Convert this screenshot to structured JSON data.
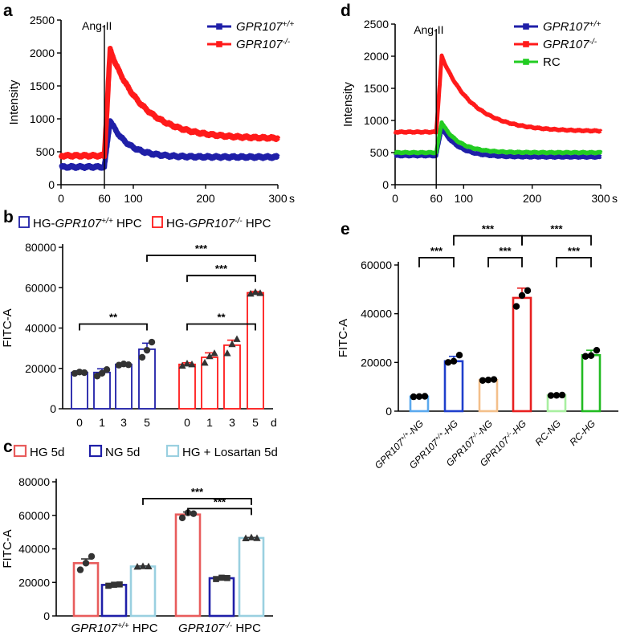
{
  "chart_data": [
    {
      "panel": "a",
      "type": "line",
      "ylabel": "Intensity",
      "x_unit": "s",
      "x_ticks": [
        0,
        60,
        100,
        200,
        300
      ],
      "y_ticks": [
        0,
        500,
        1000,
        1500,
        2000,
        2500
      ],
      "xlim": [
        0,
        300
      ],
      "ylim": [
        0,
        2500
      ],
      "annotation": {
        "text": "Ang-II",
        "x": 60
      },
      "series": [
        {
          "name": "GPR107",
          "sup": "+/+",
          "color": "#1f1fa8",
          "baseline": 270,
          "peak": 980,
          "plateau": 420
        },
        {
          "name": "GPR107",
          "sup": "-/-",
          "color": "#ff1a1a",
          "baseline": 440,
          "peak": 2050,
          "plateau": 700
        }
      ]
    },
    {
      "panel": "d",
      "type": "line",
      "ylabel": "Intensity",
      "x_unit": "s",
      "x_ticks": [
        0,
        60,
        100,
        200,
        300
      ],
      "y_ticks": [
        0,
        500,
        1000,
        1500,
        2000,
        2500
      ],
      "xlim": [
        0,
        300
      ],
      "ylim": [
        0,
        2500
      ],
      "annotation": {
        "text": "Ang-II",
        "x": 60
      },
      "series": [
        {
          "name": "GPR107",
          "sup": "+/+",
          "color": "#1f1fa8",
          "baseline": 450,
          "peak": 880,
          "plateau": 430
        },
        {
          "name": "GPR107",
          "sup": "-/-",
          "color": "#ff1a1a",
          "baseline": 820,
          "peak": 2000,
          "plateau": 830
        },
        {
          "name": "RC",
          "sup": "",
          "color": "#22cc22",
          "baseline": 500,
          "peak": 970,
          "plateau": 500
        }
      ]
    },
    {
      "panel": "b",
      "type": "bar",
      "ylabel": "FITC-A",
      "y_ticks": [
        0,
        20000,
        40000,
        60000,
        80000
      ],
      "ylim": [
        0,
        80000
      ],
      "x_unit": "d",
      "legend": [
        {
          "prefix": "HG-",
          "gene": "GPR107",
          "sup": "+/+",
          "suffix": " HPC",
          "color": "#1f1fa8"
        },
        {
          "prefix": "HG-",
          "gene": "GPR107",
          "sup": "-/-",
          "suffix": " HPC",
          "color": "#ff1a1a"
        }
      ],
      "groups": [
        {
          "color": "#1f1fa8",
          "marker": "circle",
          "categories": [
            "0",
            "1",
            "3",
            "5"
          ],
          "values": [
            18000,
            18000,
            22000,
            29500
          ],
          "errors": [
            800,
            1800,
            600,
            3000
          ],
          "points": [
            [
              17500,
              18200,
              17900
            ],
            [
              16200,
              17600,
              19400
            ],
            [
              21600,
              22200,
              21800
            ],
            [
              25500,
              29000,
              33000
            ]
          ]
        },
        {
          "color": "#ff1a1a",
          "marker": "triangle",
          "categories": [
            "0",
            "1",
            "3",
            "5"
          ],
          "values": [
            22000,
            25500,
            31500,
            57500
          ],
          "errors": [
            800,
            2200,
            2500,
            600
          ],
          "points": [
            [
              21300,
              22400,
              22000
            ],
            [
              22800,
              26000,
              27500
            ],
            [
              27500,
              32000,
              34500
            ],
            [
              57000,
              57800,
              57300
            ]
          ]
        }
      ],
      "significance": [
        {
          "label": "**",
          "from": [
            0,
            0
          ],
          "to": [
            0,
            3
          ],
          "y": 42000
        },
        {
          "label": "**",
          "from": [
            1,
            0
          ],
          "to": [
            1,
            3
          ],
          "y": 42000
        },
        {
          "label": "***",
          "from": [
            1,
            0
          ],
          "to": [
            1,
            3
          ],
          "y": 66000
        },
        {
          "label": "***",
          "from": [
            0,
            3
          ],
          "to": [
            1,
            3
          ],
          "y": 76000
        }
      ]
    },
    {
      "panel": "c",
      "type": "bar",
      "ylabel": "FITC-A",
      "y_ticks": [
        0,
        20000,
        40000,
        60000,
        80000
      ],
      "ylim": [
        0,
        80000
      ],
      "legend": [
        {
          "label": "HG 5d",
          "color": "#e85c5c"
        },
        {
          "label": "NG 5d",
          "color": "#1f1fa8"
        },
        {
          "label": "HG + Losartan 5d",
          "color": "#9ad0e0"
        }
      ],
      "groups": [
        {
          "gene": "GPR107",
          "sup": "+/+",
          "suffix": " HPC",
          "values": [
            31500,
            18500,
            29500
          ],
          "errors": [
            2500,
            500,
            300
          ],
          "markers": [
            "circle",
            "square",
            "triangle"
          ],
          "points": [
            [
              27500,
              31500,
              35500
            ],
            [
              18000,
              18600,
              18800
            ],
            [
              29300,
              29600,
              29500
            ]
          ]
        },
        {
          "gene": "GPR107",
          "sup": "-/-",
          "suffix": " HPC",
          "values": [
            60500,
            22500,
            46500
          ],
          "errors": [
            1500,
            500,
            300
          ],
          "markers": [
            "circle",
            "square",
            "triangle"
          ],
          "points": [
            [
              58500,
              61500,
              61000
            ],
            [
              22000,
              22800,
              22600
            ],
            [
              46300,
              46800,
              46400
            ]
          ]
        }
      ],
      "significance": [
        {
          "label": "***",
          "from": [
            0,
            2
          ],
          "to": [
            1,
            2
          ],
          "y": 70000
        },
        {
          "label": "***",
          "from": [
            1,
            0
          ],
          "to": [
            1,
            2
          ],
          "y": 64000
        }
      ]
    },
    {
      "panel": "e",
      "type": "bar",
      "ylabel": "FITC-A",
      "y_ticks": [
        0,
        20000,
        40000,
        60000
      ],
      "ylim": [
        0,
        60000
      ],
      "categories": [
        {
          "gene": "GPR107",
          "sup": "+/+",
          "suffix": "-NG"
        },
        {
          "gene": "GPR107",
          "sup": "+/+",
          "suffix": "-HG"
        },
        {
          "gene": "GPR107",
          "sup": "-/-",
          "suffix": "-NG"
        },
        {
          "gene": "GPR107",
          "sup": "-/-",
          "suffix": "-HG"
        },
        {
          "gene": "",
          "sup": "",
          "suffix": "RC-NG"
        },
        {
          "gene": "",
          "sup": "",
          "suffix": "RC-HG"
        }
      ],
      "values": [
        6000,
        20500,
        12800,
        46500,
        6500,
        23000
      ],
      "errors": [
        200,
        2000,
        300,
        4000,
        200,
        2000
      ],
      "colors": [
        "#5aa9ee",
        "#1f3fcc",
        "#f3bf8a",
        "#e82020",
        "#a8efa0",
        "#22bb22"
      ],
      "points": [
        [
          5900,
          6000,
          6100
        ],
        [
          20000,
          20500,
          23000
        ],
        [
          12600,
          12800,
          13000
        ],
        [
          43000,
          47500,
          49500
        ],
        [
          6400,
          6500,
          6600
        ],
        [
          22500,
          22800,
          25000
        ]
      ],
      "significance": [
        {
          "label": "***",
          "from": 0,
          "to": 1,
          "y": 63000
        },
        {
          "label": "***",
          "from": 2,
          "to": 3,
          "y": 63000
        },
        {
          "label": "***",
          "from": 4,
          "to": 5,
          "y": 63000
        },
        {
          "label": "***",
          "from": 1,
          "to": 3,
          "y": 72000
        },
        {
          "label": "***",
          "from": 3,
          "to": 5,
          "y": 72000
        }
      ]
    }
  ]
}
